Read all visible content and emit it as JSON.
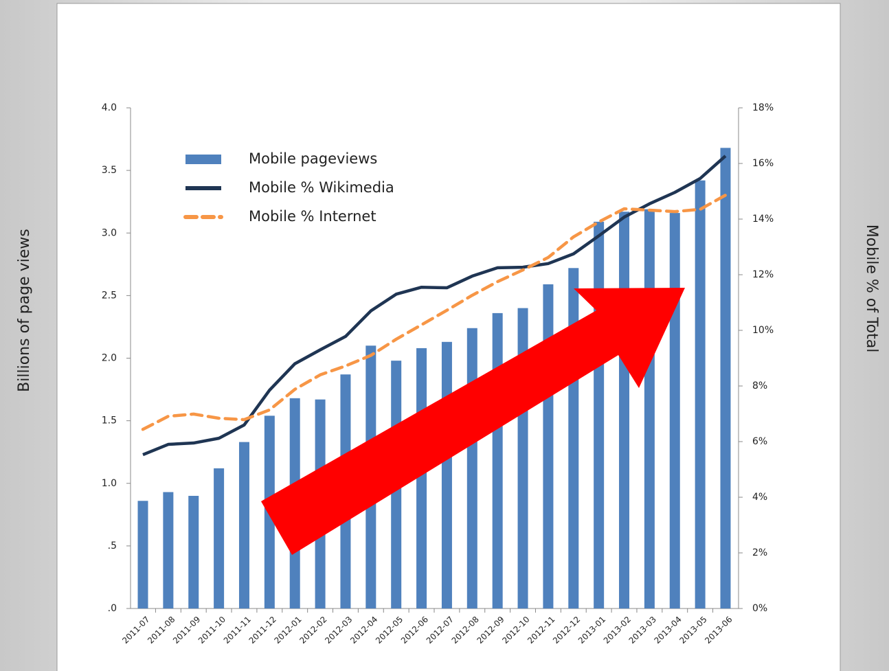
{
  "chart_data": {
    "type": "bar",
    "ylabel": "Billions of page views",
    "y2label": "Mobile % of Total",
    "categories": [
      "2011-07",
      "2011-08",
      "2011-09",
      "2011-10",
      "2011-11",
      "2011-12",
      "2012-01",
      "2012-02",
      "2012-03",
      "2012-04",
      "2012-05",
      "2012-06",
      "2012-07",
      "2012-08",
      "2012-09",
      "2012-10",
      "2012-11",
      "2012-12",
      "2013-01",
      "2013-02",
      "2013-03",
      "2013-04",
      "2013-05",
      "2013-06"
    ],
    "series": [
      {
        "name": "Mobile pageviews",
        "type": "bar",
        "color": "#4f81bd",
        "axis": "y",
        "values": [
          0.86,
          0.93,
          0.9,
          1.12,
          1.33,
          1.54,
          1.68,
          1.67,
          1.87,
          2.1,
          1.98,
          2.08,
          2.13,
          2.24,
          2.36,
          2.4,
          2.59,
          2.72,
          3.09,
          3.17,
          3.19,
          3.16,
          3.42,
          3.68
        ]
      },
      {
        "name": "Mobile % Wikimedia",
        "type": "line",
        "color": "#1f3553",
        "axis": "y2",
        "values": [
          5.53,
          5.9,
          5.95,
          6.12,
          6.6,
          7.85,
          8.8,
          9.3,
          9.78,
          10.7,
          11.3,
          11.55,
          11.53,
          11.95,
          12.25,
          12.27,
          12.4,
          12.75,
          13.4,
          14.07,
          14.55,
          14.96,
          15.46,
          16.27
        ]
      },
      {
        "name": "Mobile % Internet",
        "type": "line",
        "dashed": true,
        "color": "#f79646",
        "axis": "y2",
        "values": [
          6.44,
          6.91,
          6.99,
          6.84,
          6.79,
          7.14,
          7.88,
          8.4,
          8.72,
          9.1,
          9.68,
          10.2,
          10.72,
          11.26,
          11.75,
          12.17,
          12.62,
          13.36,
          13.9,
          14.37,
          14.32,
          14.27,
          14.35,
          14.86
        ]
      }
    ],
    "ylim": [
      0,
      4
    ],
    "yticks": [
      {
        "value": 0,
        "label": ".0"
      },
      {
        "value": 0.5,
        "label": ".5"
      },
      {
        "value": 1,
        "label": "1.0"
      },
      {
        "value": 1.5,
        "label": "1.5"
      },
      {
        "value": 2,
        "label": "2.0"
      },
      {
        "value": 2.5,
        "label": "2.5"
      },
      {
        "value": 3,
        "label": "3.0"
      },
      {
        "value": 3.5,
        "label": "3.5"
      },
      {
        "value": 4,
        "label": "4.0"
      }
    ],
    "y2lim": [
      0,
      18
    ],
    "y2ticks": [
      {
        "value": 0,
        "label": "0%"
      },
      {
        "value": 2,
        "label": "2%"
      },
      {
        "value": 4,
        "label": "4%"
      },
      {
        "value": 6,
        "label": "6%"
      },
      {
        "value": 8,
        "label": "8%"
      },
      {
        "value": 10,
        "label": "10%"
      },
      {
        "value": 12,
        "label": "12%"
      },
      {
        "value": 14,
        "label": "14%"
      },
      {
        "value": 16,
        "label": "16%"
      },
      {
        "value": 18,
        "label": "18%"
      }
    ],
    "legend": "upper left"
  }
}
